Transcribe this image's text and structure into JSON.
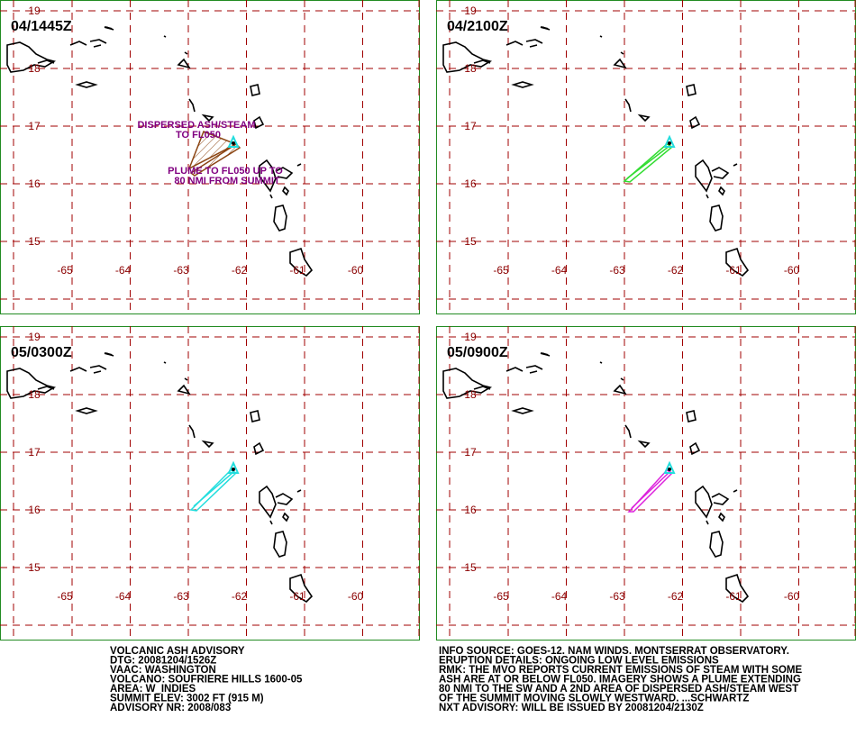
{
  "grid": {
    "lat_labels": [
      19,
      18,
      17,
      16,
      15
    ],
    "lon_labels": [
      -65,
      -64,
      -63,
      -62,
      -61,
      -60
    ]
  },
  "panels": [
    {
      "time": "04/1445Z",
      "annotations": [
        "DISPERSED ASH/STEAM",
        "TO FL050",
        "PLUME TO FL050 UP TO",
        "80 NMI FROM SUMMIT"
      ]
    },
    {
      "time": "04/2100Z"
    },
    {
      "time": "05/0300Z"
    },
    {
      "time": "05/0900Z"
    }
  ],
  "advisory": {
    "left": [
      "VOLCANIC ASH ADVISORY",
      "DTG: 20081204/1526Z",
      "VAAC: WASHINGTON",
      "VOLCANO: SOUFRIERE HILLS 1600-05",
      "AREA: W_INDIES",
      "SUMMIT ELEV: 3002 FT (915 M)",
      "ADVISORY NR: 2008/083"
    ],
    "right": [
      "INFO SOURCE: GOES-12. NAM WINDS. MONTSERRAT OBSERVATORY.",
      "ERUPTION DETAILS: ONGOING LOW LEVEL EMISSIONS",
      "RMK: THE MVO REPORTS CURRENT EMISSIONS OF STEAM WITH SOME",
      "ASH ARE AT OR BELOW FL050. IMAGERY SHOWS A PLUME EXTENDING",
      "80 NMI TO THE SW AND A 2ND AREA OF DISPERSED ASH/STEAM WEST",
      "OF THE SUMMIT MOVING SLOWLY WESTWARD. ...SCHWARTZ",
      "NXT ADVISORY: WILL BE ISSUED BY 20081204/2130Z"
    ]
  }
}
